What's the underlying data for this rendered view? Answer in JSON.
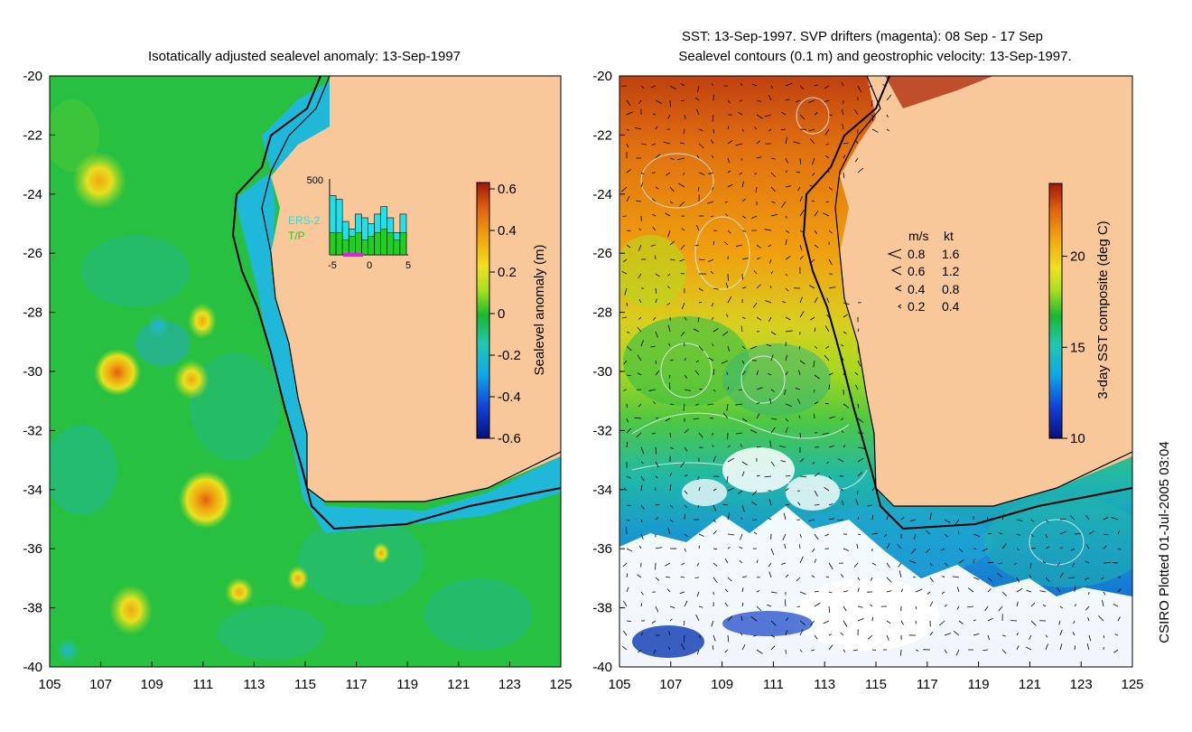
{
  "left_panel": {
    "title": "Isotatically adjusted sealevel anomaly: 13-Sep-1997",
    "lon_ticks": [
      "105",
      "107",
      "109",
      "111",
      "113",
      "115",
      "117",
      "119",
      "121",
      "123",
      "125"
    ],
    "lat_ticks": [
      "-20",
      "-22",
      "-24",
      "-26",
      "-28",
      "-30",
      "-32",
      "-34",
      "-36",
      "-38",
      "-40"
    ],
    "colorbar": {
      "label": "Sealevel anomaly (m)",
      "ticks": [
        "0.6",
        "0.4",
        "0.2",
        "0",
        "-0.2",
        "-0.4",
        "-0.6"
      ],
      "colors": [
        "#08107a",
        "#1040d8",
        "#10a8e8",
        "#20c8b0",
        "#18b830",
        "#a8e020",
        "#f0e020",
        "#f0a810",
        "#e06010",
        "#a01808"
      ]
    },
    "inset": {
      "y_max_label": "500",
      "x_ticks": [
        "-5",
        "0",
        "5"
      ],
      "legend_ers": "ERS-2",
      "legend_tp": "T/P",
      "ers_color": "#20e0e8",
      "tp_color": "#20d020",
      "cyan_bars": [
        0.8,
        0.75,
        0.45,
        0.35,
        0.55,
        0.5,
        0.42,
        0.55,
        0.65,
        0.5,
        0.3,
        0.55
      ],
      "green_bars": [
        0.3,
        0.3,
        0.2,
        0.25,
        0.3,
        0.2,
        0.25,
        0.3,
        0.35,
        0.3,
        0.2,
        0.3
      ]
    }
  },
  "right_panel": {
    "title_line1": "SST: 13-Sep-1997. SVP drifters (magenta): 08 Sep - 17 Sep",
    "title_line2": "Sealevel contours (0.1 m) and geostrophic velocity: 13-Sep-1997.",
    "lon_ticks": [
      "105",
      "107",
      "109",
      "111",
      "113",
      "115",
      "117",
      "119",
      "121",
      "123",
      "125"
    ],
    "lat_ticks": [
      "-20",
      "-22",
      "-24",
      "-26",
      "-28",
      "-30",
      "-32",
      "-34",
      "-36",
      "-38",
      "-40"
    ],
    "colorbar": {
      "label": "3-day SST composite (deg C)",
      "ticks": [
        "20",
        "15",
        "10"
      ],
      "colors": [
        "#08107a",
        "#1040d8",
        "#10a8e8",
        "#20c8b0",
        "#18b830",
        "#a8e020",
        "#f0e020",
        "#f0a810",
        "#e06010",
        "#a01808"
      ]
    },
    "velocity_legend": {
      "header_ms": "m/s",
      "header_kt": "kt",
      "rows": [
        {
          "ms": "0.8",
          "kt": "1.6"
        },
        {
          "ms": "0.6",
          "kt": "1.2"
        },
        {
          "ms": "0.4",
          "kt": "0.8"
        },
        {
          "ms": "0.2",
          "kt": "0.4"
        }
      ]
    }
  },
  "colors": {
    "land": "#f8c89a",
    "ocean_left": "#28c040",
    "shelf": "#20b8d8",
    "cloud": "#ffffff"
  },
  "footer": {
    "plotted_label": "CSIRO Plotted 01-Jul-2005 03:04"
  }
}
